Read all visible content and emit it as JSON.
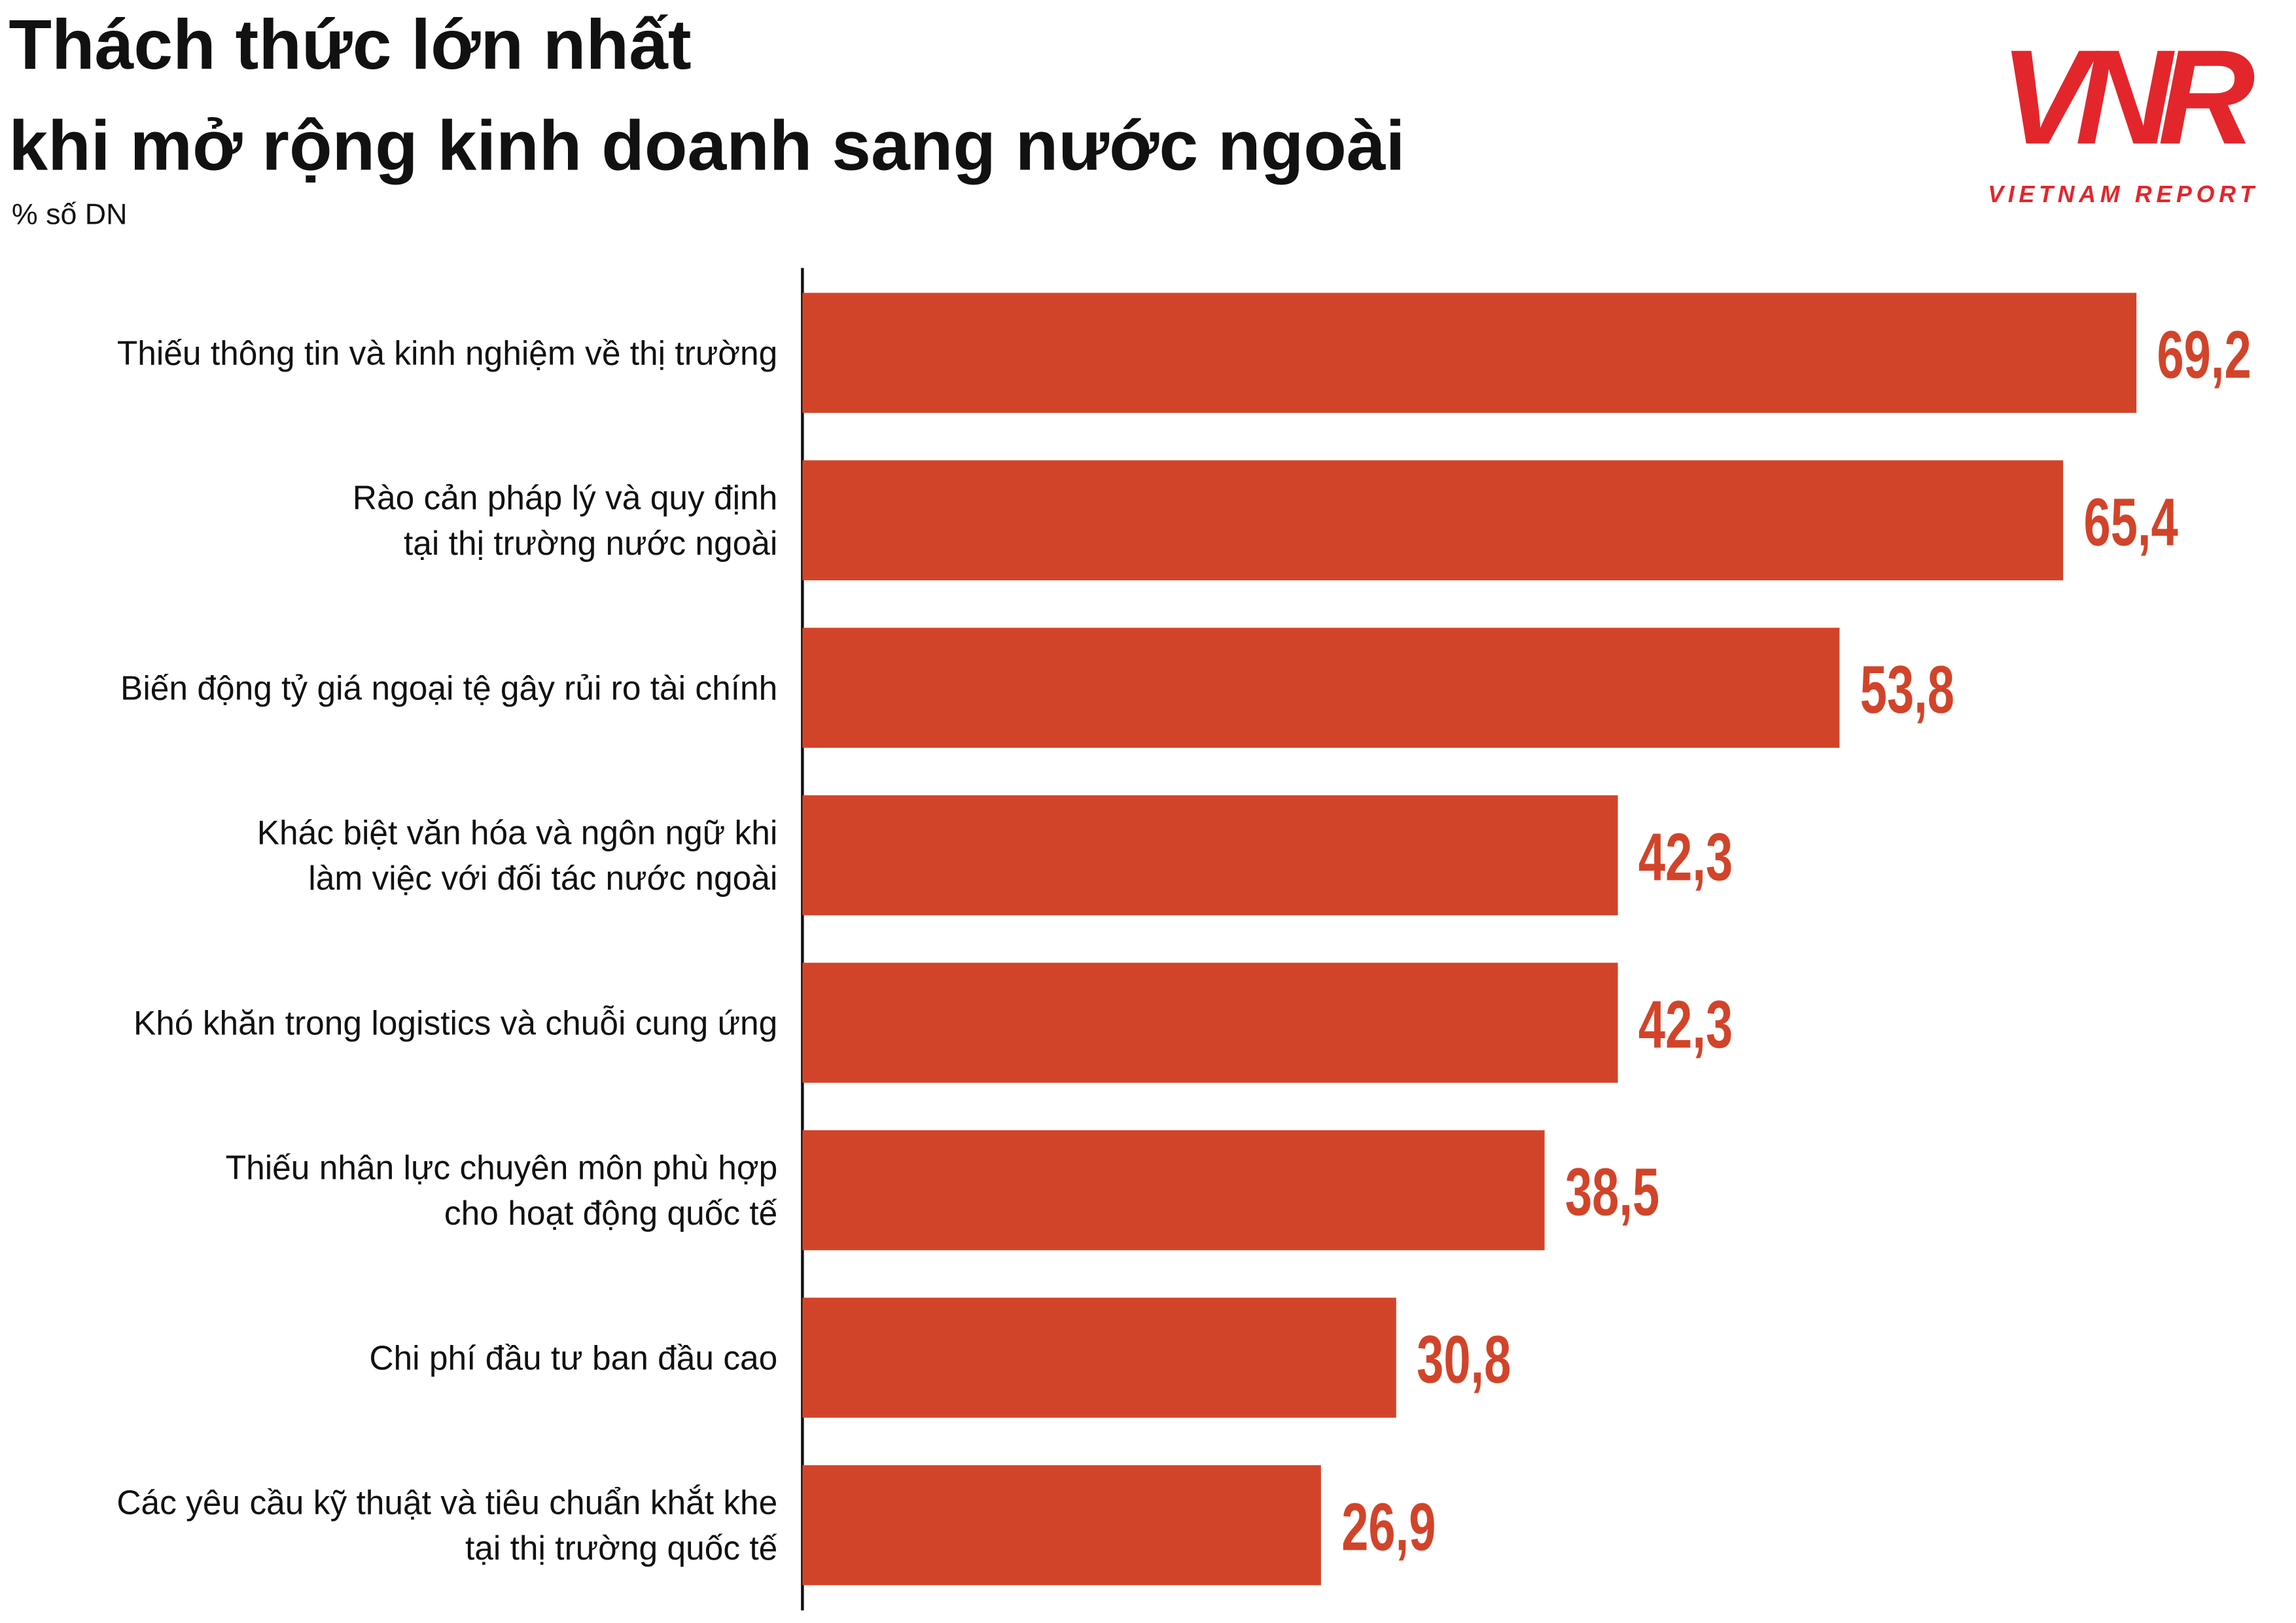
{
  "chart_data": {
    "type": "hbar",
    "title": [
      "Thách thức lớn nhất",
      "khi mở rộng kinh doanh sang nước ngoài"
    ],
    "subtitle": "% số DN",
    "categories": [
      [
        "Thiếu thông tin và kinh nghiệm về thị trường"
      ],
      [
        "Rào cản pháp lý và quy định",
        "tại thị trường nước ngoài"
      ],
      [
        "Biến động tỷ giá ngoại tệ gây rủi ro tài chính"
      ],
      [
        "Khác biệt văn hóa và ngôn ngữ khi",
        "làm việc với đối tác nước ngoài"
      ],
      [
        "Khó khăn trong logistics và chuỗi cung ứng"
      ],
      [
        "Thiếu nhân lực chuyên môn phù hợp",
        "cho hoạt động quốc tế"
      ],
      [
        "Chi phí đầu tư ban đầu cao"
      ],
      [
        "Các yêu cầu kỹ thuật và tiêu chuẩn khắt khe",
        "tại thị trường quốc tế"
      ]
    ],
    "values": [
      69.2,
      65.4,
      53.8,
      42.3,
      42.3,
      38.5,
      30.8,
      26.9
    ],
    "value_labels": [
      "69,2",
      "65,4",
      "53,8",
      "42,3",
      "42,3",
      "38,5",
      "30,8",
      "26,9"
    ],
    "color": "#d2442a"
  },
  "logo": {
    "mark": "VNR",
    "name": "VIETNAM REPORT"
  }
}
